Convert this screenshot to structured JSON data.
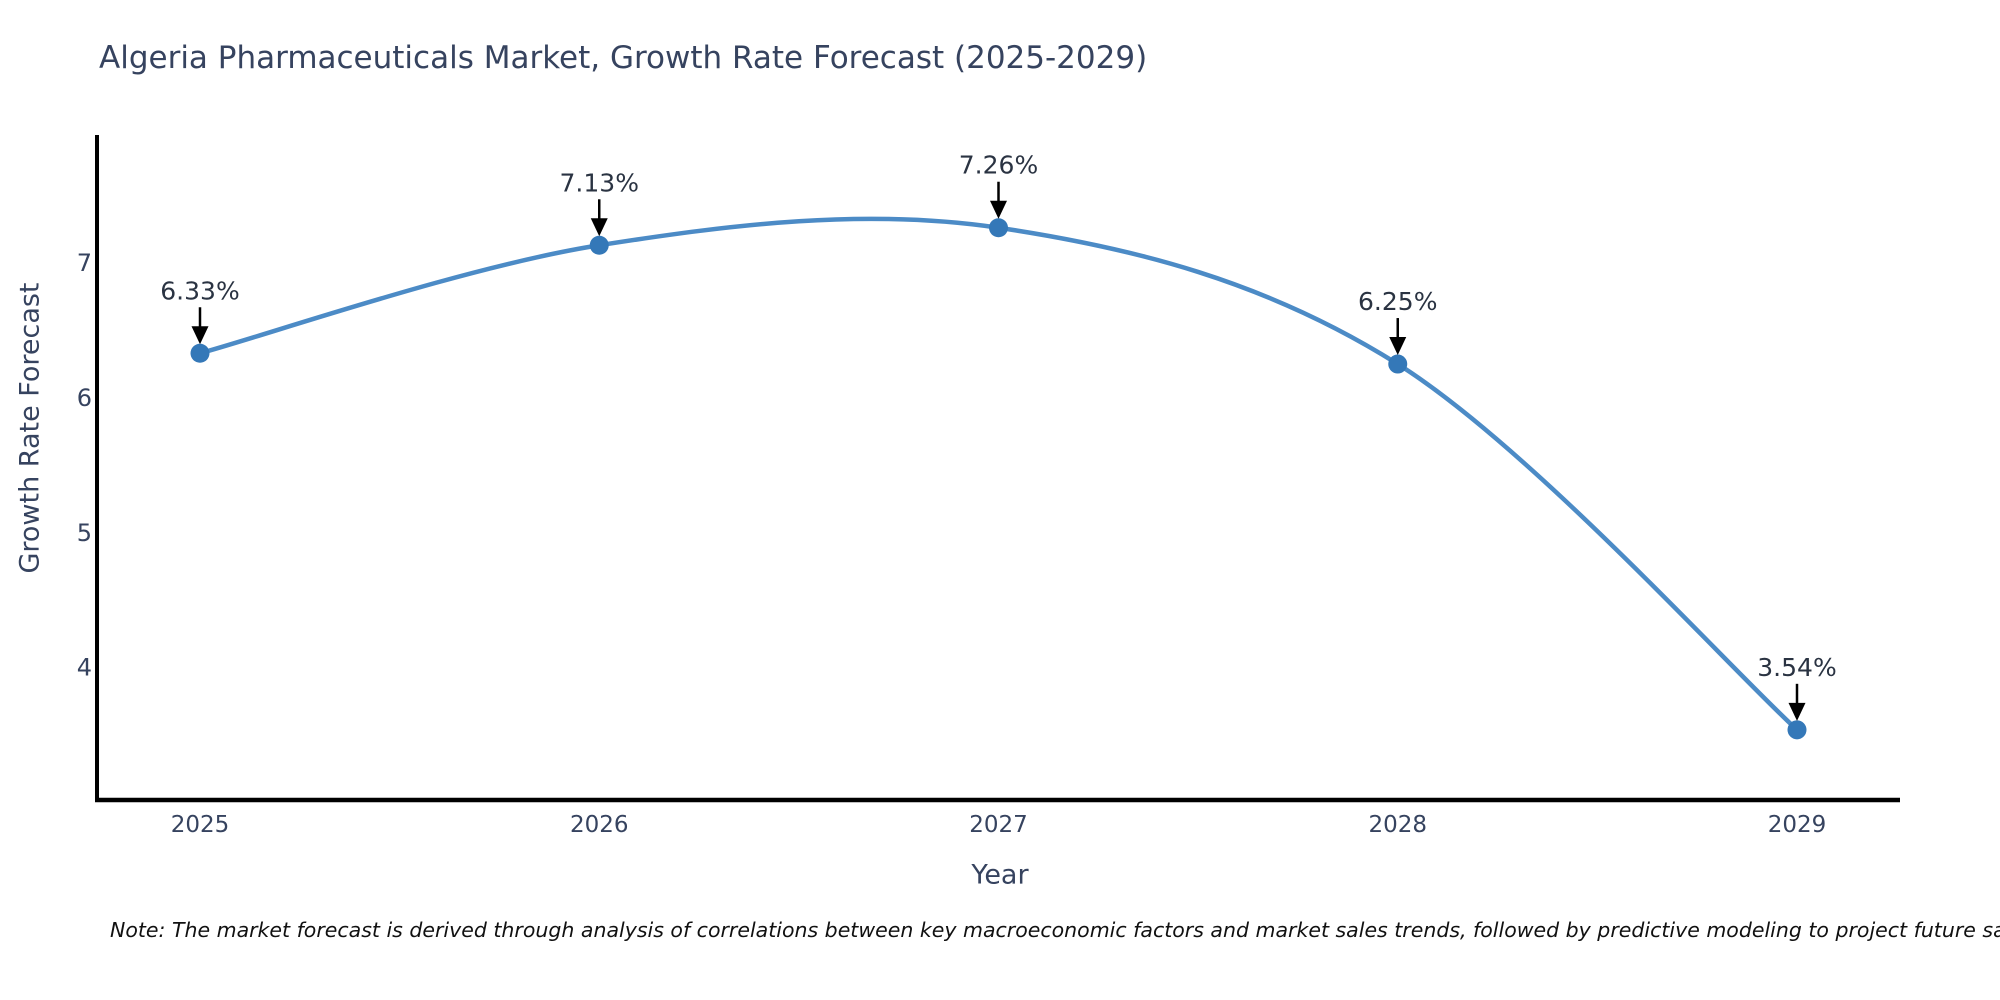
{
  "title": "Algeria Pharmaceuticals Market, Growth Rate Forecast (2025-2029)",
  "note": "Note: The market forecast is derived through analysis of correlations between key macroeconomic factors and market sales trends, followed by predictive modeling to project future sales.",
  "chart_data": {
    "type": "line",
    "title": "Algeria Pharmaceuticals Market, Growth Rate Forecast (2025-2029)",
    "xlabel": "Year",
    "ylabel": "Growth Rate Forecast",
    "x": [
      2025,
      2026,
      2027,
      2028,
      2029
    ],
    "values": [
      6.33,
      7.13,
      7.26,
      6.25,
      3.54
    ],
    "point_labels": [
      "6.33%",
      "7.13%",
      "7.26%",
      "6.25%",
      "3.54%"
    ],
    "yticks": [
      4,
      5,
      6,
      7
    ],
    "xlim": [
      2024.74,
      2029.26
    ],
    "ylim": [
      3.02,
      7.91
    ],
    "grid": false,
    "legend": null,
    "curve": "smooth-spline",
    "line_color": "#4c8bc6",
    "marker_color": "#3478b8",
    "axis_color": "#000000",
    "annotation_arrow_color": "#000000",
    "annotation_text_color": "#2a3342",
    "text_color": "#36435f"
  }
}
